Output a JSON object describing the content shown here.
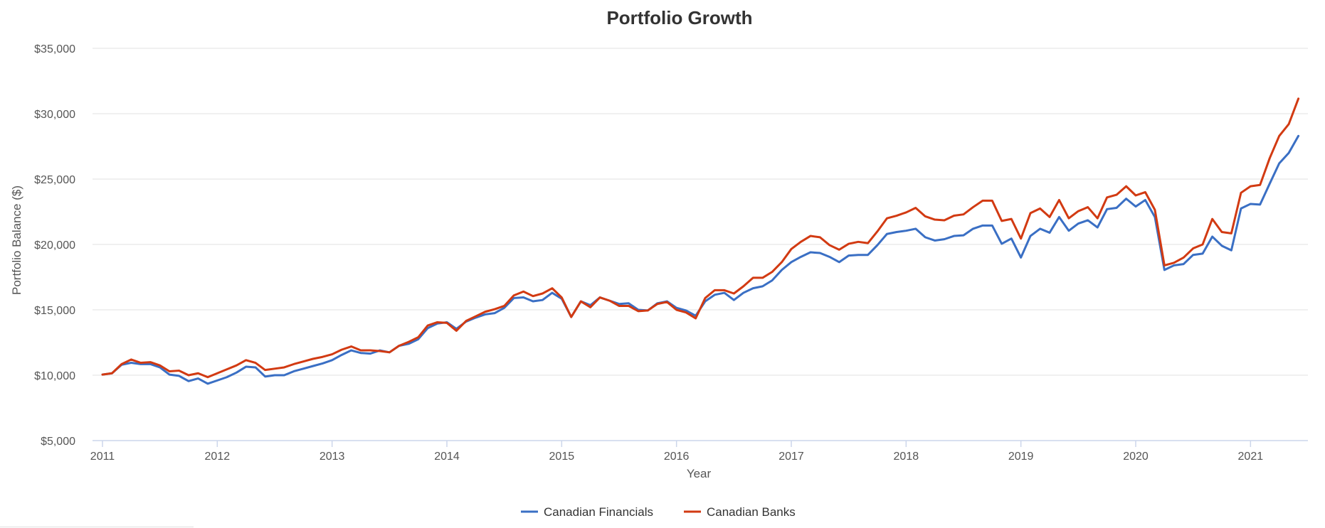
{
  "chart_data": {
    "type": "line",
    "title": "Portfolio Growth",
    "xlabel": "Year",
    "ylabel": "Portfolio Balance ($)",
    "ylim": [
      5000,
      35000
    ],
    "xlim": [
      2011.0,
      2021.5
    ],
    "yticks": [
      "$5,000",
      "$10,000",
      "$15,000",
      "$20,000",
      "$25,000",
      "$30,000",
      "$35,000"
    ],
    "xticks": [
      "2011",
      "2012",
      "2013",
      "2014",
      "2015",
      "2016",
      "2017",
      "2018",
      "2019",
      "2020",
      "2021"
    ],
    "grid": true,
    "legend_position": "bottom-center",
    "colors": {
      "Canadian Financials": "#3a6fc4",
      "Canadian Banks": "#d23a12"
    },
    "series": [
      {
        "name": "Canadian Financials",
        "x": [
          2011.0,
          2011.083,
          2011.167,
          2011.25,
          2011.333,
          2011.417,
          2011.5,
          2011.583,
          2011.667,
          2011.75,
          2011.833,
          2011.917,
          2012.0,
          2012.083,
          2012.167,
          2012.25,
          2012.333,
          2012.417,
          2012.5,
          2012.583,
          2012.667,
          2012.75,
          2012.833,
          2012.917,
          2013.0,
          2013.083,
          2013.167,
          2013.25,
          2013.333,
          2013.417,
          2013.5,
          2013.583,
          2013.667,
          2013.75,
          2013.833,
          2013.917,
          2014.0,
          2014.083,
          2014.167,
          2014.25,
          2014.333,
          2014.417,
          2014.5,
          2014.583,
          2014.667,
          2014.75,
          2014.833,
          2014.917,
          2015.0,
          2015.083,
          2015.167,
          2015.25,
          2015.333,
          2015.417,
          2015.5,
          2015.583,
          2015.667,
          2015.75,
          2015.833,
          2015.917,
          2016.0,
          2016.083,
          2016.167,
          2016.25,
          2016.333,
          2016.417,
          2016.5,
          2016.583,
          2016.667,
          2016.75,
          2016.833,
          2016.917,
          2017.0,
          2017.083,
          2017.167,
          2017.25,
          2017.333,
          2017.417,
          2017.5,
          2017.583,
          2017.667,
          2017.75,
          2017.833,
          2017.917,
          2018.0,
          2018.083,
          2018.167,
          2018.25,
          2018.333,
          2018.417,
          2018.5,
          2018.583,
          2018.667,
          2018.75,
          2018.833,
          2018.917,
          2019.0,
          2019.083,
          2019.167,
          2019.25,
          2019.333,
          2019.417,
          2019.5,
          2019.583,
          2019.667,
          2019.75,
          2019.833,
          2019.917,
          2020.0,
          2020.083,
          2020.167,
          2020.25,
          2020.333,
          2020.417,
          2020.5,
          2020.583,
          2020.667,
          2020.75,
          2020.833,
          2020.917,
          2021.0,
          2021.083,
          2021.167,
          2021.25,
          2021.333,
          2021.417
        ],
        "values": [
          10050,
          10150,
          10800,
          10950,
          10850,
          10850,
          10600,
          10050,
          9950,
          9550,
          9750,
          9350,
          9600,
          9850,
          10200,
          10650,
          10600,
          9900,
          10000,
          10000,
          10300,
          10500,
          10700,
          10900,
          11150,
          11550,
          11900,
          11700,
          11650,
          11900,
          11750,
          12250,
          12400,
          12750,
          13600,
          13950,
          14050,
          13550,
          14100,
          14400,
          14650,
          14750,
          15150,
          15900,
          15950,
          15650,
          15750,
          16300,
          15850,
          14450,
          15650,
          15350,
          15950,
          15700,
          15450,
          15500,
          15000,
          14950,
          15500,
          15650,
          15150,
          14950,
          14550,
          15650,
          16150,
          16300,
          15750,
          16300,
          16650,
          16800,
          17250,
          18050,
          18650,
          19050,
          19400,
          19350,
          19050,
          18650,
          19150,
          19200,
          19200,
          19950,
          20800,
          20950,
          21050,
          21200,
          20550,
          20300,
          20400,
          20650,
          20700,
          21200,
          21450,
          21450,
          20050,
          20450,
          19000,
          20650,
          21200,
          20900,
          22100,
          21050,
          21600,
          21850,
          21300,
          22700,
          22800,
          23500,
          22900,
          23400,
          22100,
          18050,
          18400,
          18500,
          19200,
          19300,
          20600,
          19900,
          19550,
          22750,
          23100,
          23050,
          24650,
          26200,
          27000,
          28300
        ]
      },
      {
        "name": "Canadian Banks",
        "x": [
          2011.0,
          2011.083,
          2011.167,
          2011.25,
          2011.333,
          2011.417,
          2011.5,
          2011.583,
          2011.667,
          2011.75,
          2011.833,
          2011.917,
          2012.0,
          2012.083,
          2012.167,
          2012.25,
          2012.333,
          2012.417,
          2012.5,
          2012.583,
          2012.667,
          2012.75,
          2012.833,
          2012.917,
          2013.0,
          2013.083,
          2013.167,
          2013.25,
          2013.333,
          2013.417,
          2013.5,
          2013.583,
          2013.667,
          2013.75,
          2013.833,
          2013.917,
          2014.0,
          2014.083,
          2014.167,
          2014.25,
          2014.333,
          2014.417,
          2014.5,
          2014.583,
          2014.667,
          2014.75,
          2014.833,
          2014.917,
          2015.0,
          2015.083,
          2015.167,
          2015.25,
          2015.333,
          2015.417,
          2015.5,
          2015.583,
          2015.667,
          2015.75,
          2015.833,
          2015.917,
          2016.0,
          2016.083,
          2016.167,
          2016.25,
          2016.333,
          2016.417,
          2016.5,
          2016.583,
          2016.667,
          2016.75,
          2016.833,
          2016.917,
          2017.0,
          2017.083,
          2017.167,
          2017.25,
          2017.333,
          2017.417,
          2017.5,
          2017.583,
          2017.667,
          2017.75,
          2017.833,
          2017.917,
          2018.0,
          2018.083,
          2018.167,
          2018.25,
          2018.333,
          2018.417,
          2018.5,
          2018.583,
          2018.667,
          2018.75,
          2018.833,
          2018.917,
          2019.0,
          2019.083,
          2019.167,
          2019.25,
          2019.333,
          2019.417,
          2019.5,
          2019.583,
          2019.667,
          2019.75,
          2019.833,
          2019.917,
          2020.0,
          2020.083,
          2020.167,
          2020.25,
          2020.333,
          2020.417,
          2020.5,
          2020.583,
          2020.667,
          2020.75,
          2020.833,
          2020.917,
          2021.0,
          2021.083,
          2021.167,
          2021.25,
          2021.333,
          2021.417
        ],
        "values": [
          10050,
          10150,
          10850,
          11200,
          10950,
          11000,
          10750,
          10300,
          10350,
          10000,
          10150,
          9850,
          10150,
          10450,
          10750,
          11150,
          10950,
          10400,
          10500,
          10600,
          10850,
          11050,
          11250,
          11400,
          11600,
          11950,
          12200,
          11900,
          11900,
          11850,
          11750,
          12250,
          12550,
          12900,
          13800,
          14050,
          14000,
          13400,
          14150,
          14500,
          14850,
          15050,
          15300,
          16100,
          16400,
          16050,
          16250,
          16650,
          15950,
          14450,
          15650,
          15200,
          15950,
          15700,
          15300,
          15300,
          14900,
          14950,
          15450,
          15600,
          15000,
          14800,
          14350,
          15900,
          16500,
          16500,
          16250,
          16800,
          17450,
          17450,
          17900,
          18650,
          19650,
          20200,
          20650,
          20550,
          19950,
          19600,
          20050,
          20200,
          20100,
          21000,
          22000,
          22200,
          22450,
          22800,
          22150,
          21900,
          21850,
          22200,
          22300,
          22850,
          23350,
          23350,
          21800,
          21950,
          20450,
          22400,
          22750,
          22100,
          23400,
          22000,
          22550,
          22850,
          22000,
          23600,
          23800,
          24450,
          23750,
          24000,
          22650,
          18400,
          18600,
          19000,
          19700,
          20000,
          21950,
          20950,
          20850,
          23950,
          24450,
          24550,
          26600,
          28300,
          29200,
          31150
        ]
      }
    ]
  }
}
